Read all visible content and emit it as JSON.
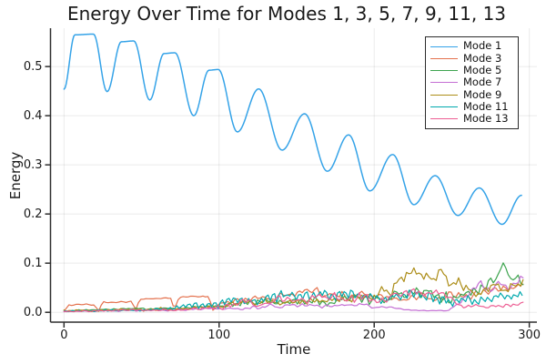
{
  "chart_data": {
    "type": "line",
    "title": "Energy Over Time for Modes 1, 3, 5, 7, 9, 11, 13",
    "xlabel": "Time",
    "ylabel": "Energy",
    "xlim": [
      -8.7,
      304.9
    ],
    "ylim": [
      -0.02,
      0.578
    ],
    "xticks": [
      0,
      100,
      200,
      300
    ],
    "yticks": [
      0.0,
      0.1,
      0.2,
      0.3,
      0.4,
      0.5
    ],
    "grid": true,
    "legend_position": "top-right",
    "t_max": 296,
    "series": [
      {
        "name": "Mode 1",
        "color": "#35a3e8",
        "line_width": 1.5,
        "render": "smooth",
        "keypoints": [
          [
            0,
            0.454
          ],
          [
            7,
            0.5645
          ],
          [
            19,
            0.566
          ],
          [
            27.8,
            0.449
          ],
          [
            37,
            0.5505
          ],
          [
            45,
            0.552
          ],
          [
            55.3,
            0.432
          ],
          [
            64.5,
            0.5265
          ],
          [
            71.5,
            0.528
          ],
          [
            83.7,
            0.4
          ],
          [
            93.5,
            0.4925
          ],
          [
            99.5,
            0.494
          ],
          [
            111.8,
            0.367
          ],
          [
            125.5,
            0.4545
          ],
          [
            140.6,
            0.33
          ],
          [
            155.1,
            0.404
          ],
          [
            169.8,
            0.287
          ],
          [
            183.5,
            0.361
          ],
          [
            197.2,
            0.247
          ],
          [
            211.9,
            0.321
          ],
          [
            225.6,
            0.219
          ],
          [
            239.3,
            0.278
          ],
          [
            254,
            0.197
          ],
          [
            267.7,
            0.253
          ],
          [
            282.4,
            0.179
          ],
          [
            295,
            0.238
          ]
        ]
      },
      {
        "name": "Mode 3",
        "color": "#e4714d",
        "line_width": 1.2,
        "render": "noisy",
        "seed": 3,
        "step": 1.6,
        "wiggle_freq": 1.1,
        "wiggle_mix": 0.35,
        "mean_points": [
          [
            0,
            0.002
          ],
          [
            3,
            0.015
          ],
          [
            20,
            0.016
          ],
          [
            22,
            0.002
          ],
          [
            25,
            0.021
          ],
          [
            44,
            0.022
          ],
          [
            46,
            0.003
          ],
          [
            49,
            0.027
          ],
          [
            69,
            0.029
          ],
          [
            71,
            0.004
          ],
          [
            74,
            0.031
          ],
          [
            93,
            0.032
          ],
          [
            96,
            0.005
          ],
          [
            101,
            0.018
          ],
          [
            112,
            0.022
          ],
          [
            122,
            0.028
          ],
          [
            132,
            0.03
          ],
          [
            142,
            0.033
          ],
          [
            152,
            0.038
          ],
          [
            162,
            0.042
          ],
          [
            172,
            0.036
          ],
          [
            182,
            0.034
          ],
          [
            192,
            0.042
          ],
          [
            202,
            0.036
          ],
          [
            212,
            0.028
          ],
          [
            222,
            0.026
          ],
          [
            232,
            0.03
          ],
          [
            242,
            0.032
          ],
          [
            252,
            0.035
          ],
          [
            262,
            0.028
          ],
          [
            270,
            0.04
          ],
          [
            278,
            0.045
          ],
          [
            285,
            0.05
          ],
          [
            290,
            0.045
          ],
          [
            296,
            0.062
          ]
        ],
        "spread_points": [
          [
            0,
            0.0015
          ],
          [
            95,
            0.002
          ],
          [
            110,
            0.005
          ],
          [
            140,
            0.007
          ],
          [
            200,
            0.009
          ],
          [
            296,
            0.009
          ]
        ]
      },
      {
        "name": "Mode 5",
        "color": "#3da44e",
        "line_width": 1.2,
        "render": "noisy",
        "seed": 5,
        "step": 1.6,
        "wiggle_freq": 1.35,
        "wiggle_mix": 0.4,
        "mean_points": [
          [
            0,
            0.003
          ],
          [
            20,
            0.005
          ],
          [
            40,
            0.007
          ],
          [
            60,
            0.007
          ],
          [
            80,
            0.009
          ],
          [
            100,
            0.012
          ],
          [
            115,
            0.018
          ],
          [
            130,
            0.022
          ],
          [
            145,
            0.02
          ],
          [
            160,
            0.022
          ],
          [
            175,
            0.025
          ],
          [
            190,
            0.025
          ],
          [
            205,
            0.03
          ],
          [
            220,
            0.035
          ],
          [
            232,
            0.042
          ],
          [
            242,
            0.03
          ],
          [
            252,
            0.028
          ],
          [
            262,
            0.035
          ],
          [
            272,
            0.05
          ],
          [
            279,
            0.07
          ],
          [
            284,
            0.092
          ],
          [
            288,
            0.06
          ],
          [
            292,
            0.072
          ],
          [
            296,
            0.06
          ]
        ],
        "spread_points": [
          [
            0,
            0.002
          ],
          [
            80,
            0.003
          ],
          [
            110,
            0.007
          ],
          [
            150,
            0.009
          ],
          [
            220,
            0.012
          ],
          [
            260,
            0.014
          ],
          [
            296,
            0.016
          ]
        ]
      },
      {
        "name": "Mode 7",
        "color": "#c46fd4",
        "line_width": 1.2,
        "render": "noisy",
        "seed": 7,
        "step": 1.6,
        "wiggle_freq": 1.2,
        "wiggle_mix": 0.4,
        "mean_points": [
          [
            0,
            0.002
          ],
          [
            40,
            0.004
          ],
          [
            80,
            0.005
          ],
          [
            110,
            0.008
          ],
          [
            130,
            0.012
          ],
          [
            150,
            0.014
          ],
          [
            170,
            0.012
          ],
          [
            185,
            0.015
          ],
          [
            200,
            0.012
          ],
          [
            210,
            0.009
          ],
          [
            220,
            0.005
          ],
          [
            226,
            0.004
          ],
          [
            248,
            0.004
          ],
          [
            255,
            0.02
          ],
          [
            262,
            0.045
          ],
          [
            268,
            0.055
          ],
          [
            274,
            0.045
          ],
          [
            280,
            0.06
          ],
          [
            286,
            0.045
          ],
          [
            291,
            0.06
          ],
          [
            296,
            0.065
          ]
        ],
        "spread_points": [
          [
            0,
            0.0015
          ],
          [
            100,
            0.003
          ],
          [
            150,
            0.005
          ],
          [
            205,
            0.004
          ],
          [
            218,
            0.0012
          ],
          [
            248,
            0.0012
          ],
          [
            258,
            0.008
          ],
          [
            296,
            0.011
          ]
        ]
      },
      {
        "name": "Mode 9",
        "color": "#ac8d18",
        "line_width": 1.2,
        "render": "noisy",
        "seed": 9,
        "step": 1.6,
        "wiggle_freq": 1.5,
        "wiggle_mix": 0.45,
        "mean_points": [
          [
            0,
            0.003
          ],
          [
            40,
            0.005
          ],
          [
            80,
            0.008
          ],
          [
            100,
            0.012
          ],
          [
            115,
            0.02
          ],
          [
            130,
            0.022
          ],
          [
            145,
            0.018
          ],
          [
            160,
            0.025
          ],
          [
            175,
            0.022
          ],
          [
            190,
            0.028
          ],
          [
            202,
            0.032
          ],
          [
            212,
            0.05
          ],
          [
            220,
            0.07
          ],
          [
            228,
            0.085
          ],
          [
            236,
            0.068
          ],
          [
            244,
            0.078
          ],
          [
            252,
            0.06
          ],
          [
            260,
            0.048
          ],
          [
            268,
            0.042
          ],
          [
            276,
            0.055
          ],
          [
            283,
            0.048
          ],
          [
            289,
            0.055
          ],
          [
            296,
            0.06
          ]
        ],
        "spread_points": [
          [
            0,
            0.002
          ],
          [
            90,
            0.004
          ],
          [
            120,
            0.007
          ],
          [
            180,
            0.009
          ],
          [
            212,
            0.015
          ],
          [
            250,
            0.015
          ],
          [
            270,
            0.01
          ],
          [
            296,
            0.01
          ]
        ]
      },
      {
        "name": "Mode 11",
        "color": "#00a9ad",
        "line_width": 1.2,
        "render": "noisy",
        "seed": 11,
        "step": 1.4,
        "wiggle_freq": 1.5,
        "wiggle_mix": 0.55,
        "mean_points": [
          [
            0,
            0.002
          ],
          [
            40,
            0.004
          ],
          [
            60,
            0.006
          ],
          [
            75,
            0.01
          ],
          [
            85,
            0.016
          ],
          [
            95,
            0.014
          ],
          [
            105,
            0.02
          ],
          [
            115,
            0.025
          ],
          [
            125,
            0.022
          ],
          [
            135,
            0.03
          ],
          [
            145,
            0.035
          ],
          [
            155,
            0.03
          ],
          [
            165,
            0.038
          ],
          [
            175,
            0.035
          ],
          [
            185,
            0.038
          ],
          [
            195,
            0.032
          ],
          [
            205,
            0.028
          ],
          [
            215,
            0.033
          ],
          [
            225,
            0.036
          ],
          [
            235,
            0.033
          ],
          [
            245,
            0.026
          ],
          [
            252,
            0.02
          ],
          [
            260,
            0.028
          ],
          [
            268,
            0.022
          ],
          [
            276,
            0.03
          ],
          [
            284,
            0.035
          ],
          [
            296,
            0.033
          ]
        ],
        "spread_points": [
          [
            0,
            0.0015
          ],
          [
            60,
            0.0025
          ],
          [
            80,
            0.007
          ],
          [
            100,
            0.011
          ],
          [
            130,
            0.013
          ],
          [
            200,
            0.012
          ],
          [
            250,
            0.011
          ],
          [
            296,
            0.009
          ]
        ]
      },
      {
        "name": "Mode 13",
        "color": "#ed5e93",
        "line_width": 1.2,
        "render": "noisy",
        "seed": 13,
        "step": 1.6,
        "wiggle_freq": 1.25,
        "wiggle_mix": 0.4,
        "mean_points": [
          [
            0,
            0.002
          ],
          [
            50,
            0.004
          ],
          [
            80,
            0.006
          ],
          [
            100,
            0.01
          ],
          [
            115,
            0.02
          ],
          [
            125,
            0.015
          ],
          [
            135,
            0.025
          ],
          [
            145,
            0.03
          ],
          [
            155,
            0.025
          ],
          [
            165,
            0.035
          ],
          [
            175,
            0.03
          ],
          [
            185,
            0.025
          ],
          [
            195,
            0.032
          ],
          [
            205,
            0.028
          ],
          [
            215,
            0.035
          ],
          [
            225,
            0.04
          ],
          [
            235,
            0.035
          ],
          [
            243,
            0.04
          ],
          [
            250,
            0.025
          ],
          [
            257,
            0.012
          ],
          [
            270,
            0.012
          ],
          [
            280,
            0.013
          ],
          [
            290,
            0.016
          ],
          [
            296,
            0.02
          ]
        ],
        "spread_points": [
          [
            0,
            0.0015
          ],
          [
            80,
            0.003
          ],
          [
            110,
            0.007
          ],
          [
            150,
            0.011
          ],
          [
            230,
            0.012
          ],
          [
            252,
            0.005
          ],
          [
            296,
            0.005
          ]
        ]
      }
    ],
    "style": {
      "background": "#ffffff",
      "grid_color": "rgba(0,0,0,0.08)",
      "spine_color": "#2e2e2e",
      "text_color": "#191919",
      "legend_border_color": "#2b2b2b"
    }
  }
}
